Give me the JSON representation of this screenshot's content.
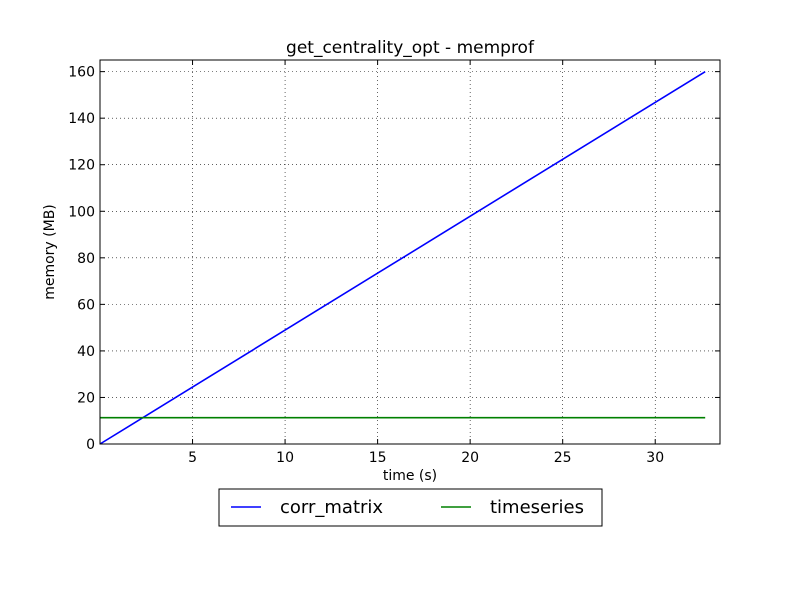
{
  "chart_data": {
    "type": "line",
    "title": "get_centrality_opt - memprof",
    "xlabel": "time (s)",
    "ylabel": "memory (MB)",
    "xlim": [
      0,
      33.5
    ],
    "ylim": [
      0,
      165
    ],
    "xticks": [
      5,
      10,
      15,
      20,
      25,
      30
    ],
    "yticks": [
      0,
      20,
      40,
      60,
      80,
      100,
      120,
      140,
      160
    ],
    "grid": true,
    "legend": "below-center",
    "series": [
      {
        "name": "corr_matrix",
        "color": "#0000ff",
        "x": [
          0,
          32.7
        ],
        "y": [
          0,
          160
        ]
      },
      {
        "name": "timeseries",
        "color": "#008000",
        "x": [
          0,
          32.7
        ],
        "y": [
          11.3,
          11.3
        ]
      }
    ]
  }
}
